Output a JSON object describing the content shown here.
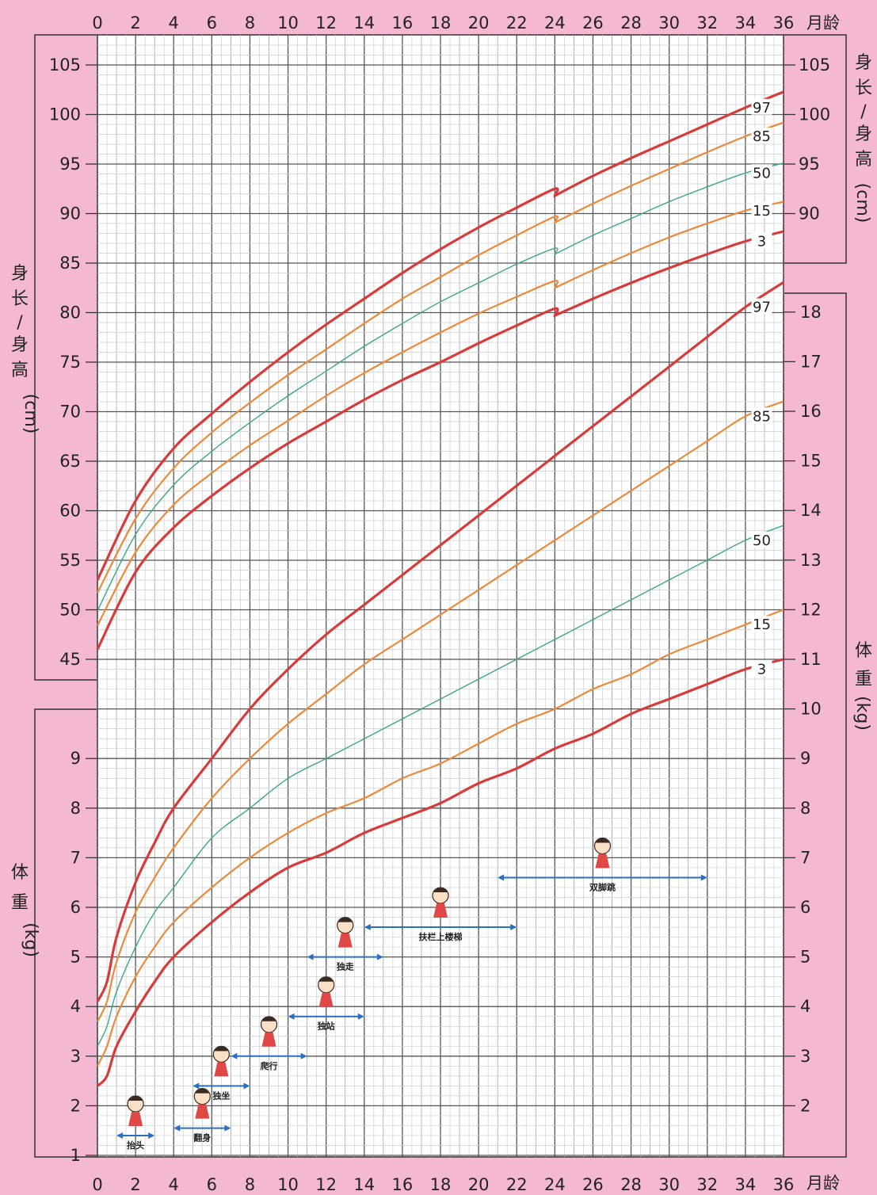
{
  "chart_data": {
    "type": "line",
    "x_unit_label": "月龄",
    "x_ticks": [
      0,
      2,
      4,
      6,
      8,
      10,
      12,
      14,
      16,
      18,
      20,
      22,
      24,
      26,
      28,
      30,
      32,
      34,
      36
    ],
    "xlim": [
      0,
      36
    ],
    "grid": true,
    "length_panel": {
      "ylabel_chars": [
        "身",
        "长",
        "/",
        "身",
        "高",
        "(cm)"
      ],
      "ylim": [
        40,
        108
      ],
      "y_ticks": [
        45,
        50,
        55,
        60,
        65,
        70,
        75,
        80,
        85,
        90,
        95,
        100,
        105
      ],
      "right_ticks": [
        90,
        95,
        100,
        105
      ],
      "series": [
        {
          "name": "97",
          "color": "#d93a3a",
          "x": [
            0,
            2,
            4,
            6,
            8,
            10,
            12,
            14,
            16,
            18,
            20,
            22,
            24,
            24,
            26,
            28,
            30,
            32,
            34,
            36
          ],
          "values": [
            53.0,
            61.0,
            66.3,
            69.8,
            73.0,
            76.0,
            78.8,
            81.4,
            84.0,
            86.4,
            88.6,
            90.6,
            92.5,
            91.8,
            93.8,
            95.6,
            97.3,
            99.0,
            100.7,
            102.3
          ]
        },
        {
          "name": "85",
          "color": "#ec8a3c",
          "x": [
            0,
            2,
            4,
            6,
            8,
            10,
            12,
            14,
            16,
            18,
            20,
            22,
            24,
            24,
            26,
            28,
            30,
            32,
            34,
            36
          ],
          "values": [
            51.7,
            59.2,
            64.3,
            67.9,
            70.9,
            73.7,
            76.3,
            78.9,
            81.4,
            83.6,
            85.8,
            87.8,
            89.7,
            89.1,
            91.0,
            92.8,
            94.5,
            96.2,
            97.8,
            99.2
          ]
        },
        {
          "name": "50",
          "color": "#3aa888",
          "x": [
            0,
            2,
            4,
            6,
            8,
            10,
            12,
            14,
            16,
            18,
            20,
            22,
            24,
            24,
            26,
            28,
            30,
            32,
            34,
            36
          ],
          "values": [
            49.9,
            57.6,
            62.6,
            66.0,
            68.9,
            71.6,
            74.1,
            76.6,
            78.9,
            81.1,
            83.0,
            84.9,
            86.5,
            85.9,
            87.8,
            89.5,
            91.2,
            92.7,
            94.1,
            95.1
          ]
        },
        {
          "name": "15",
          "color": "#ec8a3c",
          "x": [
            0,
            2,
            4,
            6,
            8,
            10,
            12,
            14,
            16,
            18,
            20,
            22,
            24,
            24,
            26,
            28,
            30,
            32,
            34,
            36
          ],
          "values": [
            48.4,
            55.8,
            60.6,
            63.8,
            66.6,
            69.1,
            71.6,
            73.9,
            76.0,
            78.0,
            79.9,
            81.6,
            83.2,
            82.5,
            84.3,
            86.0,
            87.6,
            89.0,
            90.3,
            91.2
          ]
        },
        {
          "name": "3",
          "color": "#d93a3a",
          "x": [
            0,
            2,
            4,
            6,
            8,
            10,
            12,
            14,
            16,
            18,
            20,
            22,
            24,
            24,
            26,
            28,
            30,
            32,
            34,
            36
          ],
          "values": [
            46.0,
            53.8,
            58.3,
            61.5,
            64.3,
            66.8,
            69.0,
            71.2,
            73.2,
            75.0,
            76.9,
            78.7,
            80.4,
            79.7,
            81.4,
            83.0,
            84.5,
            85.9,
            87.2,
            88.2
          ]
        }
      ]
    },
    "weight_panel": {
      "ylabel_chars": [
        "体",
        "重",
        "(kg)"
      ],
      "ylim": [
        1,
        18.5
      ],
      "y_ticks_left": [
        1,
        2,
        3,
        4,
        5,
        6,
        7,
        8,
        9
      ],
      "y_ticks_right": [
        2,
        3,
        4,
        5,
        6,
        7,
        8,
        9,
        10,
        11,
        12,
        13,
        14,
        15,
        16,
        17,
        18
      ],
      "series": [
        {
          "name": "97",
          "color": "#d93a3a",
          "x": [
            0,
            0.5,
            1,
            2,
            3,
            4,
            6,
            8,
            10,
            12,
            14,
            16,
            18,
            20,
            22,
            24,
            26,
            28,
            30,
            32,
            34,
            36
          ],
          "values": [
            4.1,
            4.5,
            5.4,
            6.5,
            7.3,
            8.0,
            9.0,
            10.0,
            10.8,
            11.5,
            12.1,
            12.7,
            13.3,
            13.9,
            14.5,
            15.1,
            15.7,
            16.3,
            16.9,
            17.5,
            18.1,
            18.6
          ]
        },
        {
          "name": "85",
          "color": "#ec8a3c",
          "x": [
            0,
            0.5,
            1,
            2,
            3,
            4,
            6,
            8,
            10,
            12,
            14,
            16,
            18,
            20,
            22,
            24,
            26,
            28,
            30,
            32,
            34,
            36
          ],
          "values": [
            3.7,
            4.1,
            4.9,
            5.9,
            6.6,
            7.2,
            8.2,
            9.0,
            9.7,
            10.3,
            10.9,
            11.4,
            11.9,
            12.4,
            12.9,
            13.4,
            13.9,
            14.4,
            14.9,
            15.4,
            15.9,
            16.2
          ]
        },
        {
          "name": "50",
          "color": "#3aa888",
          "x": [
            0,
            0.5,
            1,
            2,
            3,
            4,
            6,
            8,
            10,
            12,
            14,
            16,
            18,
            20,
            22,
            24,
            26,
            28,
            30,
            32,
            34,
            36
          ],
          "values": [
            3.2,
            3.6,
            4.3,
            5.2,
            5.9,
            6.4,
            7.4,
            8.0,
            8.6,
            9.0,
            9.4,
            9.8,
            10.2,
            10.6,
            11.0,
            11.4,
            11.8,
            12.2,
            12.6,
            13.0,
            13.4,
            13.7
          ]
        },
        {
          "name": "15",
          "color": "#ec8a3c",
          "x": [
            0,
            0.5,
            1,
            2,
            3,
            4,
            6,
            8,
            10,
            12,
            14,
            16,
            18,
            20,
            22,
            24,
            26,
            28,
            30,
            32,
            34,
            36
          ],
          "values": [
            2.8,
            3.2,
            3.8,
            4.6,
            5.2,
            5.7,
            6.4,
            7.0,
            7.5,
            7.9,
            8.2,
            8.6,
            8.9,
            9.3,
            9.7,
            10.0,
            10.4,
            10.7,
            11.1,
            11.4,
            11.7,
            12.0
          ]
        },
        {
          "name": "3",
          "color": "#d93a3a",
          "x": [
            0,
            0.5,
            1,
            2,
            3,
            4,
            6,
            8,
            10,
            12,
            14,
            16,
            18,
            20,
            22,
            24,
            26,
            28,
            30,
            32,
            34,
            36
          ],
          "values": [
            2.4,
            2.6,
            3.2,
            3.9,
            4.5,
            5.0,
            5.7,
            6.3,
            6.8,
            7.1,
            7.5,
            7.8,
            8.1,
            8.5,
            8.8,
            9.2,
            9.5,
            9.9,
            10.2,
            10.5,
            10.8,
            11.0
          ]
        }
      ]
    },
    "milestones": [
      {
        "label": "抬头",
        "start": 1,
        "end": 3,
        "weight_level": 1.4
      },
      {
        "label": "翻身",
        "start": 4,
        "end": 7,
        "weight_level": 1.55
      },
      {
        "label": "独坐",
        "start": 5,
        "end": 8,
        "weight_level": 2.4
      },
      {
        "label": "爬行",
        "start": 7,
        "end": 11,
        "weight_level": 3.0
      },
      {
        "label": "独站",
        "start": 10,
        "end": 14,
        "weight_level": 3.8
      },
      {
        "label": "独走",
        "start": 11,
        "end": 15,
        "weight_level": 5.0
      },
      {
        "label": "扶栏上楼梯",
        "start": 14,
        "end": 22,
        "weight_level": 5.6
      },
      {
        "label": "双脚跳",
        "start": 21,
        "end": 32,
        "weight_level": 6.6
      }
    ]
  }
}
